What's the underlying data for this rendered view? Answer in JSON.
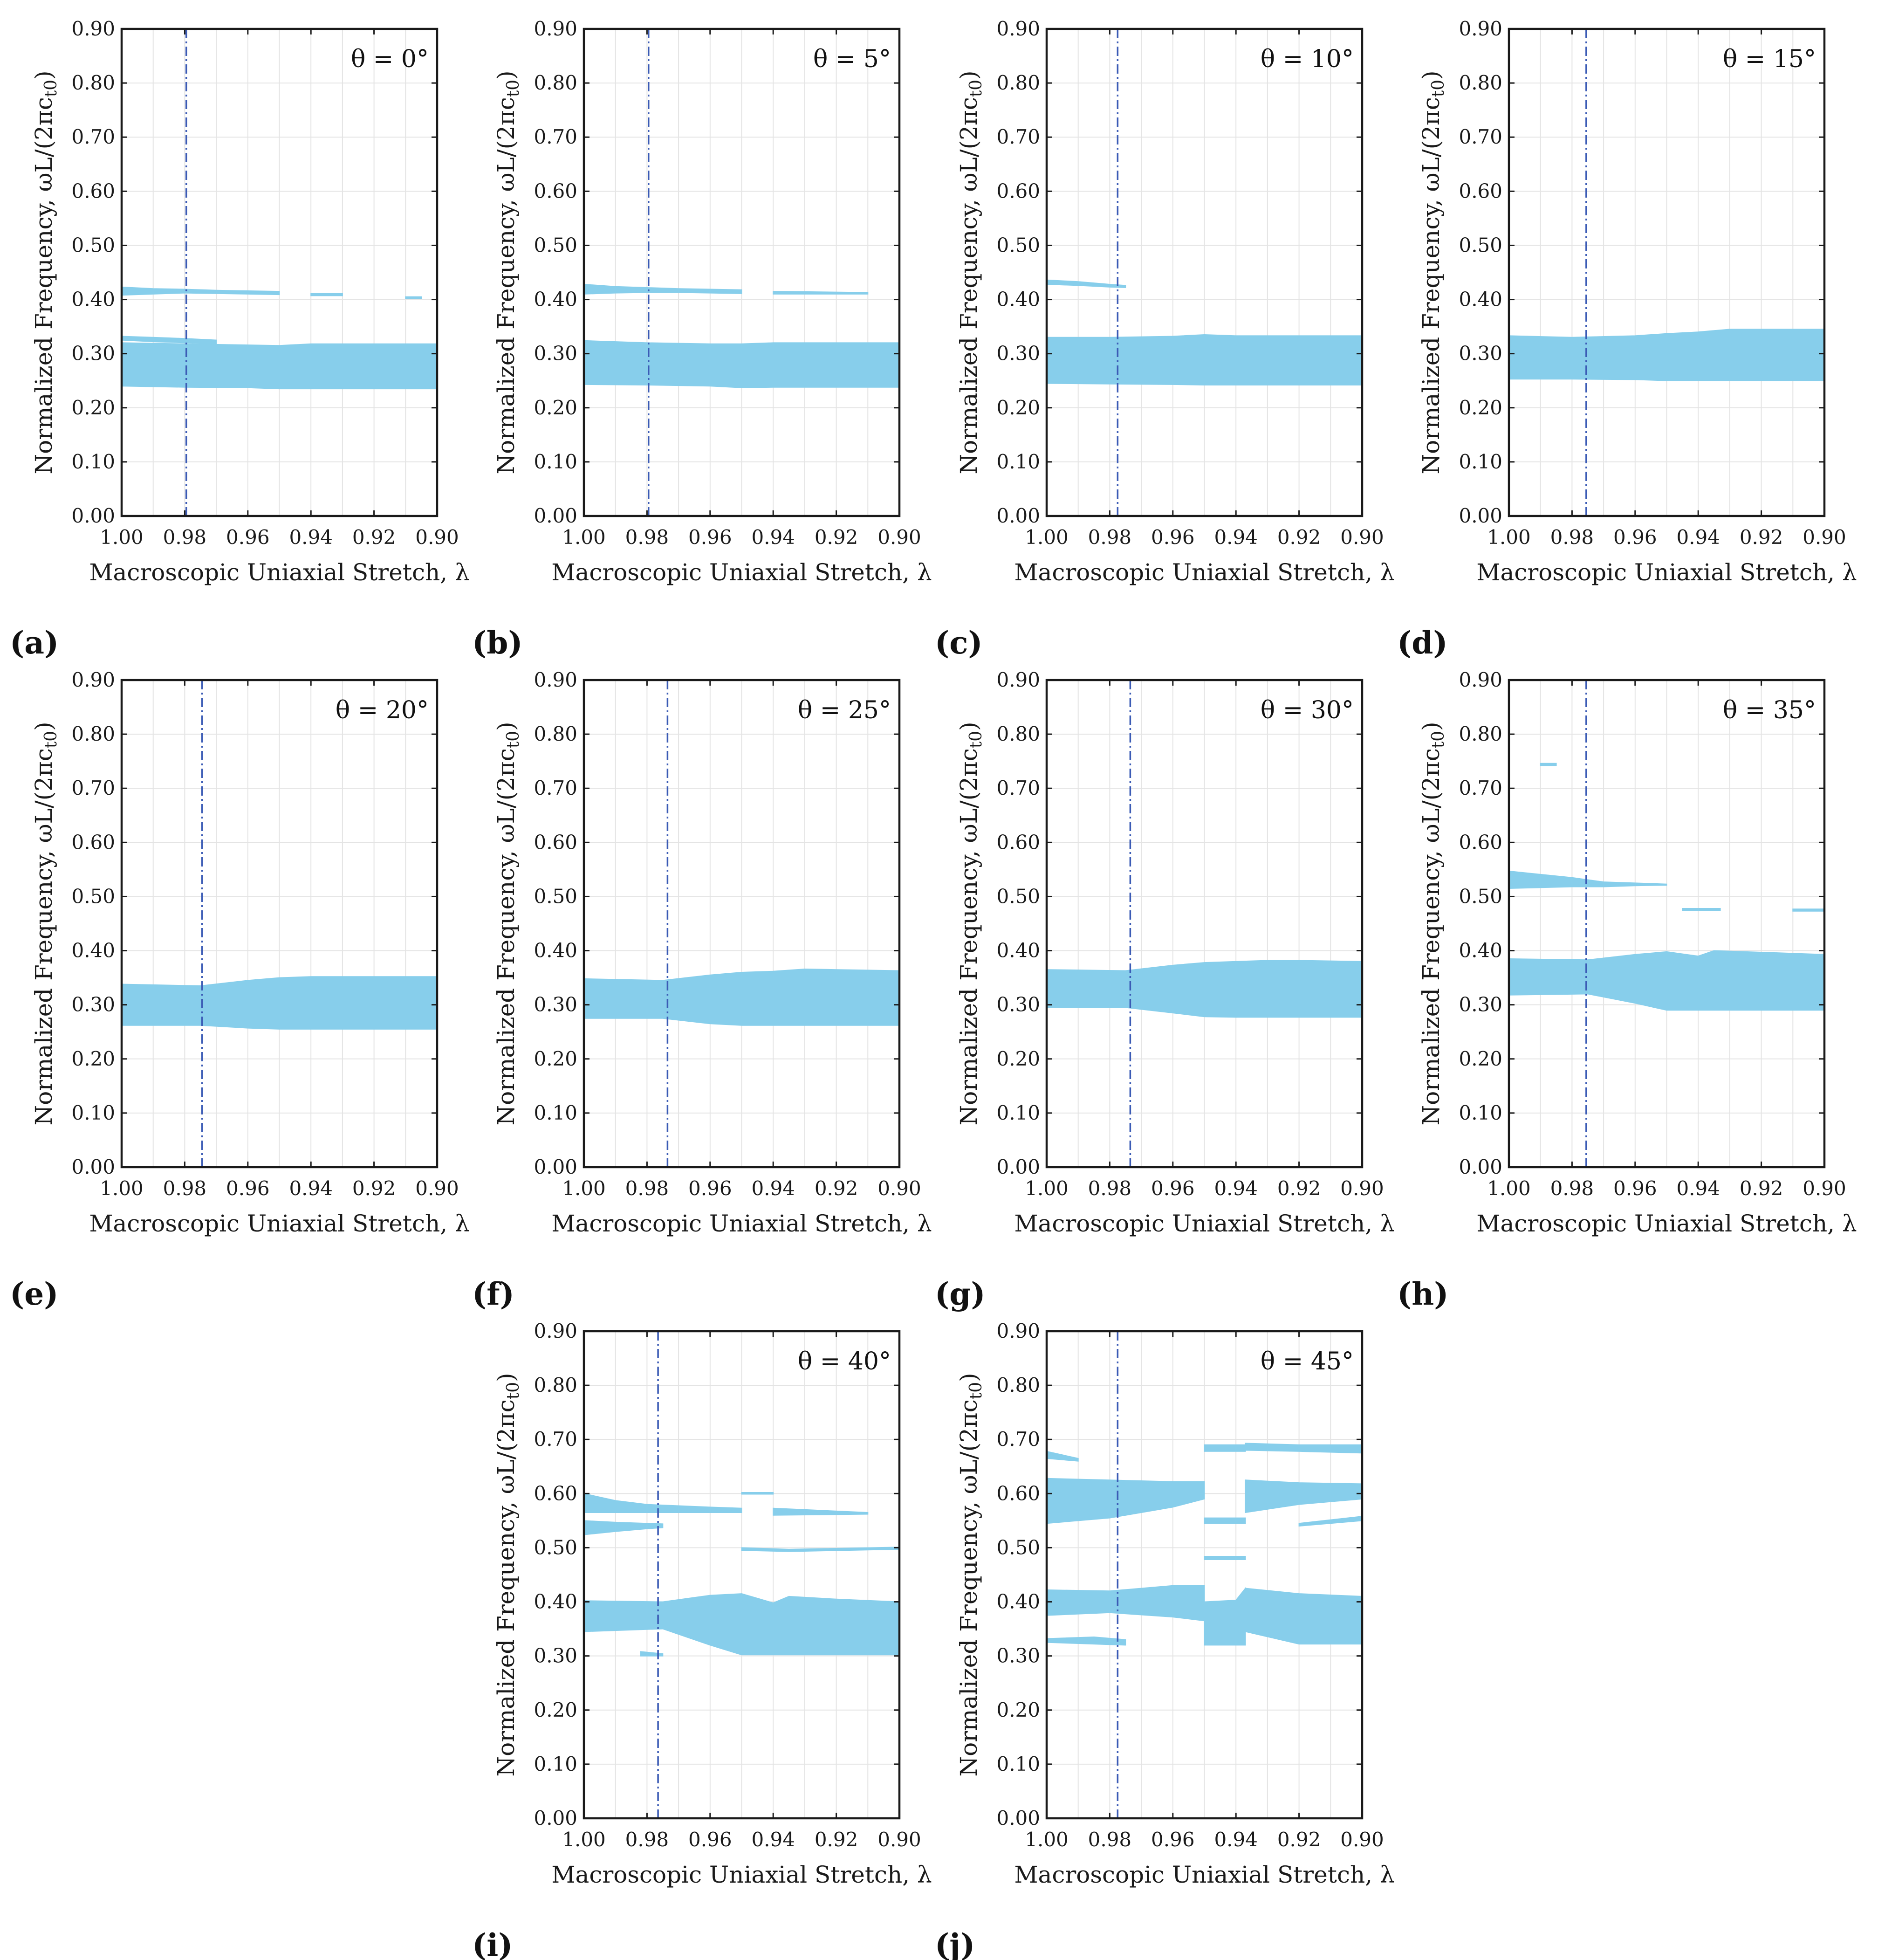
{
  "figure": {
    "x_label": "Macroscopic Uniaxial Stretch, λ",
    "y_label": "Normalized Frequency, ωL/(2πc",
    "y_label_sub": "t0",
    "y_label_close": ")",
    "theta_prefix": "θ = ",
    "degree": "°"
  },
  "colors": {
    "band_fill": "#87ceeb",
    "guide_line": "#3b5bb5",
    "grid": "#e4e4e4",
    "axes": "#1a1a1a"
  },
  "chart_data": [
    {
      "type": "area",
      "panel_label": "(a)",
      "theta": 0,
      "x_ticks": [
        "1.00",
        "0.98",
        "0.96",
        "0.94",
        "0.92",
        "0.90"
      ],
      "y_ticks": [
        "0.00",
        "0.10",
        "0.20",
        "0.30",
        "0.40",
        "0.50",
        "0.60",
        "0.70",
        "0.80",
        "0.90"
      ],
      "xlim": [
        1.0,
        0.9
      ],
      "ylim": [
        0,
        0.9
      ],
      "critical_stretch": 0.9795,
      "band_gaps": [
        {
          "x": [
            1.0,
            0.98,
            0.96,
            0.95,
            0.94,
            0.92,
            0.9
          ],
          "lower": [
            0.24,
            0.238,
            0.237,
            0.235,
            0.235,
            0.235,
            0.235
          ],
          "upper": [
            0.32,
            0.318,
            0.316,
            0.315,
            0.318,
            0.318,
            0.318
          ]
        },
        {
          "x": [
            1.0,
            0.99,
            0.98,
            0.97
          ],
          "lower": [
            0.325,
            0.322,
            0.32,
            0.318
          ],
          "upper": [
            0.332,
            0.33,
            0.328,
            0.325
          ]
        },
        {
          "x": [
            1.0,
            0.99,
            0.98,
            0.97,
            0.96,
            0.95
          ],
          "lower": [
            0.408,
            0.41,
            0.412,
            0.411,
            0.41,
            0.409
          ],
          "upper": [
            0.423,
            0.42,
            0.419,
            0.417,
            0.416,
            0.415
          ]
        },
        {
          "x": [
            0.94,
            0.93
          ],
          "lower": [
            0.407,
            0.407
          ],
          "upper": [
            0.411,
            0.411
          ]
        },
        {
          "x": [
            0.91,
            0.905
          ],
          "lower": [
            0.402,
            0.402
          ],
          "upper": [
            0.405,
            0.405
          ]
        }
      ]
    },
    {
      "type": "area",
      "panel_label": "(b)",
      "theta": 5,
      "x_ticks": [
        "1.00",
        "0.98",
        "0.96",
        "0.94",
        "0.92",
        "0.90"
      ],
      "y_ticks": [
        "0.00",
        "0.10",
        "0.20",
        "0.30",
        "0.40",
        "0.50",
        "0.60",
        "0.70",
        "0.80",
        "0.90"
      ],
      "xlim": [
        1.0,
        0.9
      ],
      "ylim": [
        0,
        0.9
      ],
      "critical_stretch": 0.9795,
      "band_gaps": [
        {
          "x": [
            1.0,
            0.98,
            0.96,
            0.95,
            0.94,
            0.92,
            0.9
          ],
          "lower": [
            0.243,
            0.242,
            0.24,
            0.237,
            0.238,
            0.238,
            0.238
          ],
          "upper": [
            0.324,
            0.32,
            0.318,
            0.318,
            0.32,
            0.32,
            0.32
          ]
        },
        {
          "x": [
            1.0,
            0.99,
            0.98,
            0.97,
            0.96,
            0.95
          ],
          "lower": [
            0.41,
            0.412,
            0.413,
            0.413,
            0.412,
            0.411
          ],
          "upper": [
            0.428,
            0.424,
            0.422,
            0.42,
            0.419,
            0.418
          ]
        },
        {
          "x": [
            0.94,
            0.91
          ],
          "lower": [
            0.41,
            0.41
          ],
          "upper": [
            0.415,
            0.413
          ]
        }
      ]
    },
    {
      "type": "area",
      "panel_label": "(c)",
      "theta": 10,
      "x_ticks": [
        "1.00",
        "0.98",
        "0.96",
        "0.94",
        "0.92",
        "0.90"
      ],
      "y_ticks": [
        "0.00",
        "0.10",
        "0.20",
        "0.30",
        "0.40",
        "0.50",
        "0.60",
        "0.70",
        "0.80",
        "0.90"
      ],
      "xlim": [
        1.0,
        0.9
      ],
      "ylim": [
        0,
        0.9
      ],
      "critical_stretch": 0.9775,
      "band_gaps": [
        {
          "x": [
            1.0,
            0.98,
            0.96,
            0.95,
            0.94,
            0.92,
            0.9
          ],
          "lower": [
            0.245,
            0.244,
            0.243,
            0.242,
            0.242,
            0.242,
            0.242
          ],
          "upper": [
            0.33,
            0.33,
            0.332,
            0.335,
            0.333,
            0.333,
            0.333
          ]
        },
        {
          "x": [
            1.0,
            0.99,
            0.98,
            0.975
          ],
          "lower": [
            0.428,
            0.426,
            0.423,
            0.422
          ],
          "upper": [
            0.436,
            0.433,
            0.428,
            0.426
          ]
        }
      ]
    },
    {
      "type": "area",
      "panel_label": "(d)",
      "theta": 15,
      "x_ticks": [
        "1.00",
        "0.98",
        "0.96",
        "0.94",
        "0.92",
        "0.90"
      ],
      "y_ticks": [
        "0.00",
        "0.10",
        "0.20",
        "0.30",
        "0.40",
        "0.50",
        "0.60",
        "0.70",
        "0.80",
        "0.90"
      ],
      "xlim": [
        1.0,
        0.9
      ],
      "ylim": [
        0,
        0.9
      ],
      "critical_stretch": 0.9755,
      "band_gaps": [
        {
          "x": [
            1.0,
            0.98,
            0.96,
            0.95,
            0.94,
            0.93,
            0.92,
            0.9
          ],
          "lower": [
            0.253,
            0.253,
            0.252,
            0.25,
            0.25,
            0.25,
            0.25,
            0.25
          ],
          "upper": [
            0.333,
            0.33,
            0.333,
            0.337,
            0.34,
            0.345,
            0.345,
            0.345
          ]
        }
      ]
    },
    {
      "type": "area",
      "panel_label": "(e)",
      "theta": 20,
      "x_ticks": [
        "1.00",
        "0.98",
        "0.96",
        "0.94",
        "0.92",
        "0.90"
      ],
      "y_ticks": [
        "0.00",
        "0.10",
        "0.20",
        "0.30",
        "0.40",
        "0.50",
        "0.60",
        "0.70",
        "0.80",
        "0.90"
      ],
      "xlim": [
        1.0,
        0.9
      ],
      "ylim": [
        0,
        0.9
      ],
      "critical_stretch": 0.9745,
      "band_gaps": [
        {
          "x": [
            1.0,
            0.975,
            0.96,
            0.95,
            0.94,
            0.92,
            0.9
          ],
          "lower": [
            0.262,
            0.262,
            0.257,
            0.255,
            0.255,
            0.255,
            0.255
          ],
          "upper": [
            0.338,
            0.335,
            0.345,
            0.35,
            0.352,
            0.352,
            0.352
          ]
        }
      ]
    },
    {
      "type": "area",
      "panel_label": "(f)",
      "theta": 25,
      "x_ticks": [
        "1.00",
        "0.98",
        "0.96",
        "0.94",
        "0.92",
        "0.90"
      ],
      "y_ticks": [
        "0.00",
        "0.10",
        "0.20",
        "0.30",
        "0.40",
        "0.50",
        "0.60",
        "0.70",
        "0.80",
        "0.90"
      ],
      "xlim": [
        1.0,
        0.9
      ],
      "ylim": [
        0,
        0.9
      ],
      "critical_stretch": 0.9735,
      "band_gaps": [
        {
          "x": [
            1.0,
            0.975,
            0.96,
            0.95,
            0.94,
            0.93,
            0.92,
            0.9
          ],
          "lower": [
            0.275,
            0.275,
            0.265,
            0.262,
            0.262,
            0.262,
            0.262,
            0.262
          ],
          "upper": [
            0.348,
            0.345,
            0.355,
            0.36,
            0.362,
            0.366,
            0.365,
            0.363
          ]
        }
      ]
    },
    {
      "type": "area",
      "panel_label": "(g)",
      "theta": 30,
      "x_ticks": [
        "1.00",
        "0.98",
        "0.96",
        "0.94",
        "0.92",
        "0.90"
      ],
      "y_ticks": [
        "0.00",
        "0.10",
        "0.20",
        "0.30",
        "0.40",
        "0.50",
        "0.60",
        "0.70",
        "0.80",
        "0.90"
      ],
      "xlim": [
        1.0,
        0.9
      ],
      "ylim": [
        0,
        0.9
      ],
      "critical_stretch": 0.9735,
      "band_gaps": [
        {
          "x": [
            1.0,
            0.975,
            0.96,
            0.95,
            0.94,
            0.93,
            0.92,
            0.9
          ],
          "lower": [
            0.295,
            0.295,
            0.285,
            0.278,
            0.277,
            0.277,
            0.277,
            0.277
          ],
          "upper": [
            0.365,
            0.363,
            0.373,
            0.378,
            0.38,
            0.382,
            0.382,
            0.38
          ]
        }
      ]
    },
    {
      "type": "area",
      "panel_label": "(h)",
      "theta": 35,
      "x_ticks": [
        "1.00",
        "0.98",
        "0.96",
        "0.94",
        "0.92",
        "0.90"
      ],
      "y_ticks": [
        "0.00",
        "0.10",
        "0.20",
        "0.30",
        "0.40",
        "0.50",
        "0.60",
        "0.70",
        "0.80",
        "0.90"
      ],
      "xlim": [
        1.0,
        0.9
      ],
      "ylim": [
        0,
        0.9
      ],
      "critical_stretch": 0.9755,
      "band_gaps": [
        {
          "x": [
            1.0,
            0.975,
            0.96,
            0.95,
            0.94,
            0.935,
            0.92,
            0.9
          ],
          "lower": [
            0.318,
            0.32,
            0.303,
            0.29,
            0.29,
            0.29,
            0.29,
            0.29
          ],
          "upper": [
            0.385,
            0.383,
            0.393,
            0.398,
            0.39,
            0.4,
            0.397,
            0.393
          ]
        },
        {
          "x": [
            1.0,
            0.98,
            0.97,
            0.96,
            0.95
          ],
          "lower": [
            0.515,
            0.518,
            0.518,
            0.52,
            0.521
          ],
          "upper": [
            0.547,
            0.535,
            0.527,
            0.525,
            0.523
          ]
        },
        {
          "x": [
            0.99,
            0.985
          ],
          "lower": [
            0.742,
            0.742
          ],
          "upper": [
            0.746,
            0.746
          ]
        },
        {
          "x": [
            0.945,
            0.933
          ],
          "lower": [
            0.474,
            0.474
          ],
          "upper": [
            0.478,
            0.478
          ]
        },
        {
          "x": [
            0.91,
            0.9
          ],
          "lower": [
            0.473,
            0.473
          ],
          "upper": [
            0.477,
            0.477
          ]
        }
      ]
    },
    {
      "type": "area",
      "panel_label": "(i)",
      "theta": 40,
      "x_ticks": [
        "1.00",
        "0.98",
        "0.96",
        "0.94",
        "0.92",
        "0.90"
      ],
      "y_ticks": [
        "0.00",
        "0.10",
        "0.20",
        "0.30",
        "0.40",
        "0.50",
        "0.60",
        "0.70",
        "0.80",
        "0.90"
      ],
      "xlim": [
        1.0,
        0.9
      ],
      "ylim": [
        0,
        0.9
      ],
      "critical_stretch": 0.9765,
      "band_gaps": [
        {
          "x": [
            1.0,
            0.975,
            0.96,
            0.95,
            0.94,
            0.935,
            0.92,
            0.9
          ],
          "lower": [
            0.345,
            0.35,
            0.32,
            0.302,
            0.302,
            0.302,
            0.302,
            0.302
          ],
          "upper": [
            0.402,
            0.4,
            0.412,
            0.415,
            0.398,
            0.41,
            0.405,
            0.4
          ]
        },
        {
          "x": [
            1.0,
            0.99,
            0.98,
            0.96,
            0.95
          ],
          "lower": [
            0.565,
            0.565,
            0.565,
            0.565,
            0.565
          ],
          "upper": [
            0.6,
            0.587,
            0.58,
            0.575,
            0.573
          ]
        },
        {
          "x": [
            1.0,
            0.99,
            0.98,
            0.975
          ],
          "lower": [
            0.524,
            0.53,
            0.535,
            0.537
          ],
          "upper": [
            0.55,
            0.547,
            0.545,
            0.544
          ]
        },
        {
          "x": [
            0.94,
            0.91
          ],
          "lower": [
            0.56,
            0.562
          ],
          "upper": [
            0.573,
            0.565
          ]
        },
        {
          "x": [
            0.95,
            0.935,
            0.9
          ],
          "lower": [
            0.495,
            0.493,
            0.497
          ],
          "upper": [
            0.5,
            0.497,
            0.501
          ]
        },
        {
          "x": [
            0.982,
            0.975
          ],
          "lower": [
            0.3,
            0.3
          ],
          "upper": [
            0.308,
            0.304
          ]
        },
        {
          "x": [
            0.95,
            0.94
          ],
          "lower": [
            0.599,
            0.599
          ],
          "upper": [
            0.602,
            0.602
          ]
        }
      ]
    },
    {
      "type": "area",
      "panel_label": "(j)",
      "theta": 45,
      "x_ticks": [
        "1.00",
        "0.98",
        "0.96",
        "0.94",
        "0.92",
        "0.90"
      ],
      "y_ticks": [
        "0.00",
        "0.10",
        "0.20",
        "0.30",
        "0.40",
        "0.50",
        "0.60",
        "0.70",
        "0.80",
        "0.90"
      ],
      "xlim": [
        1.0,
        0.9
      ],
      "ylim": [
        0,
        0.9
      ],
      "critical_stretch": 0.9775,
      "band_gaps": [
        {
          "x": [
            1.0,
            0.98,
            0.96,
            0.95
          ],
          "lower": [
            0.375,
            0.38,
            0.372,
            0.365
          ],
          "upper": [
            0.422,
            0.42,
            0.43,
            0.43
          ]
        },
        {
          "x": [
            0.95,
            0.94,
            0.937
          ],
          "lower": [
            0.32,
            0.32,
            0.32
          ],
          "upper": [
            0.4,
            0.403,
            0.425
          ]
        },
        {
          "x": [
            0.937,
            0.92,
            0.9
          ],
          "lower": [
            0.345,
            0.322,
            0.322
          ],
          "upper": [
            0.425,
            0.415,
            0.41
          ]
        },
        {
          "x": [
            1.0,
            0.98,
            0.96,
            0.95
          ],
          "lower": [
            0.545,
            0.555,
            0.575,
            0.59
          ],
          "upper": [
            0.628,
            0.625,
            0.622,
            0.622
          ]
        },
        {
          "x": [
            0.937,
            0.92,
            0.9
          ],
          "lower": [
            0.565,
            0.58,
            0.59
          ],
          "upper": [
            0.625,
            0.62,
            0.618
          ]
        },
        {
          "x": [
            1.0,
            0.99
          ],
          "lower": [
            0.665,
            0.66
          ],
          "upper": [
            0.678,
            0.665
          ]
        },
        {
          "x": [
            0.95,
            0.937
          ],
          "lower": [
            0.678,
            0.678
          ],
          "upper": [
            0.69,
            0.69
          ]
        },
        {
          "x": [
            0.937,
            0.92,
            0.9
          ],
          "lower": [
            0.68,
            0.678,
            0.675
          ],
          "upper": [
            0.693,
            0.69,
            0.69
          ]
        },
        {
          "x": [
            1.0,
            0.985,
            0.975
          ],
          "lower": [
            0.325,
            0.322,
            0.32
          ],
          "upper": [
            0.332,
            0.335,
            0.33
          ]
        },
        {
          "x": [
            0.95,
            0.937
          ],
          "lower": [
            0.545,
            0.545
          ],
          "upper": [
            0.555,
            0.555
          ]
        },
        {
          "x": [
            0.95,
            0.937
          ],
          "lower": [
            0.478,
            0.478
          ],
          "upper": [
            0.484,
            0.484
          ]
        },
        {
          "x": [
            0.92,
            0.9
          ],
          "lower": [
            0.54,
            0.55
          ],
          "upper": [
            0.545,
            0.558
          ]
        }
      ]
    }
  ]
}
